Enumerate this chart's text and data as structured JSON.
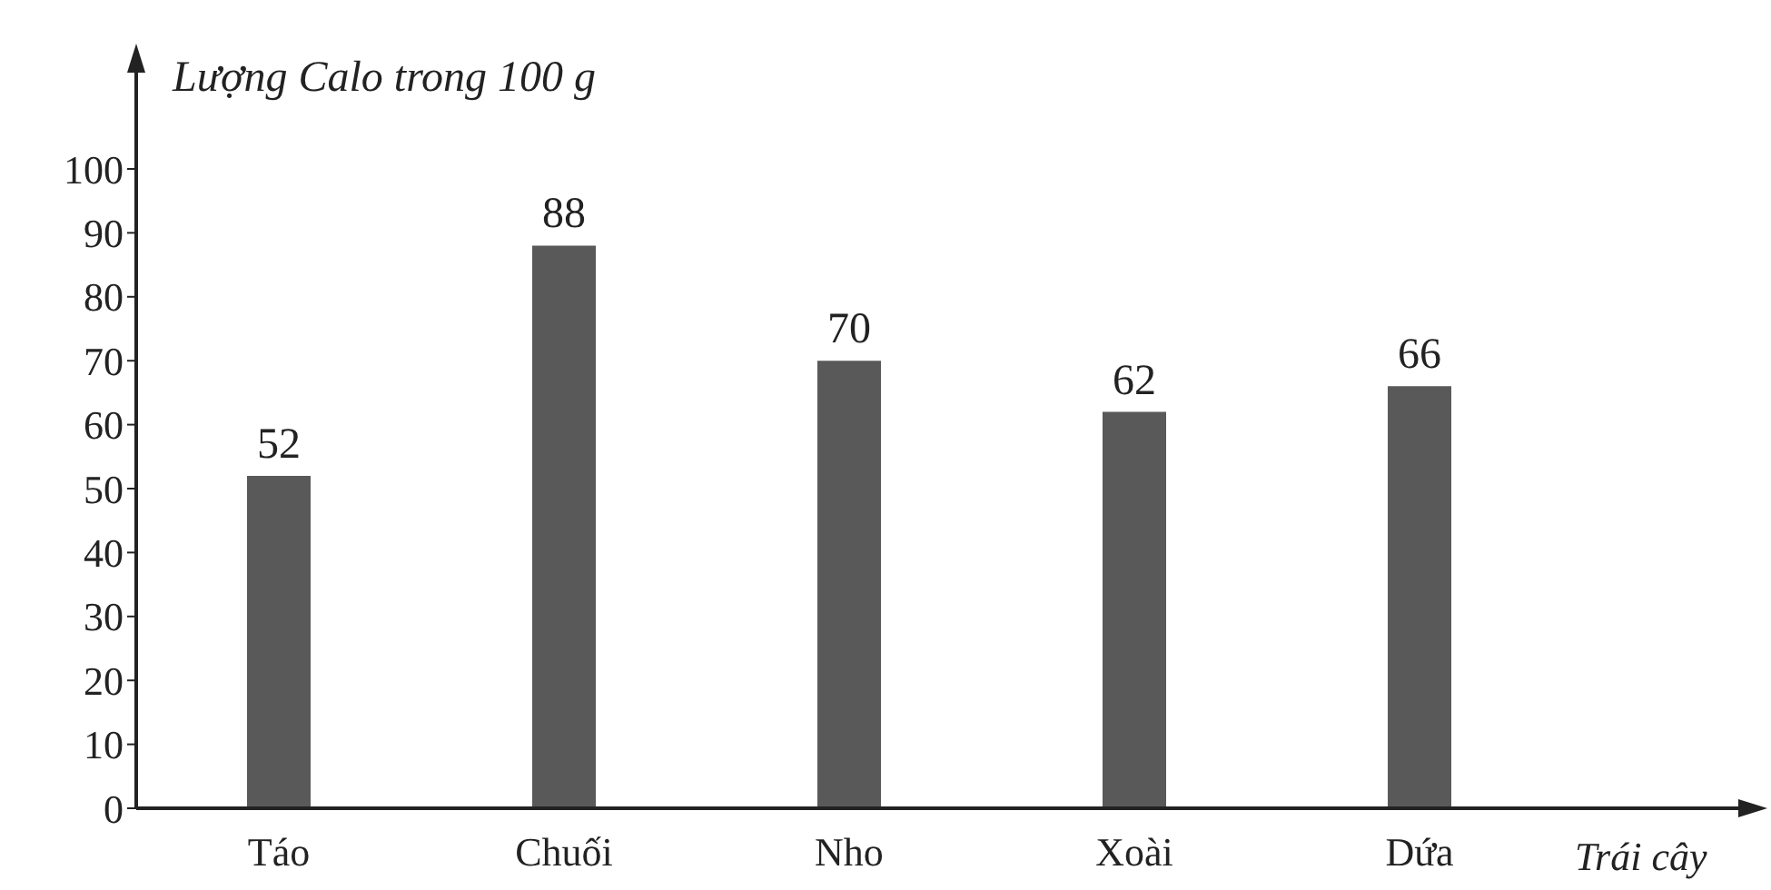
{
  "chart_data": {
    "type": "bar",
    "xlabel": "Trái cây",
    "ylabel": "Lượng Calo trong 100 g",
    "categories": [
      "Táo",
      "Chuối",
      "Nho",
      "Xoài",
      "Dứa"
    ],
    "values": [
      52,
      88,
      70,
      62,
      66
    ],
    "color": "#595959",
    "ylim": [
      0,
      100
    ],
    "yticks": [
      0,
      10,
      20,
      30,
      40,
      50,
      60,
      70,
      80,
      90,
      100
    ],
    "data_labels": true,
    "grid": false,
    "legend": false
  }
}
